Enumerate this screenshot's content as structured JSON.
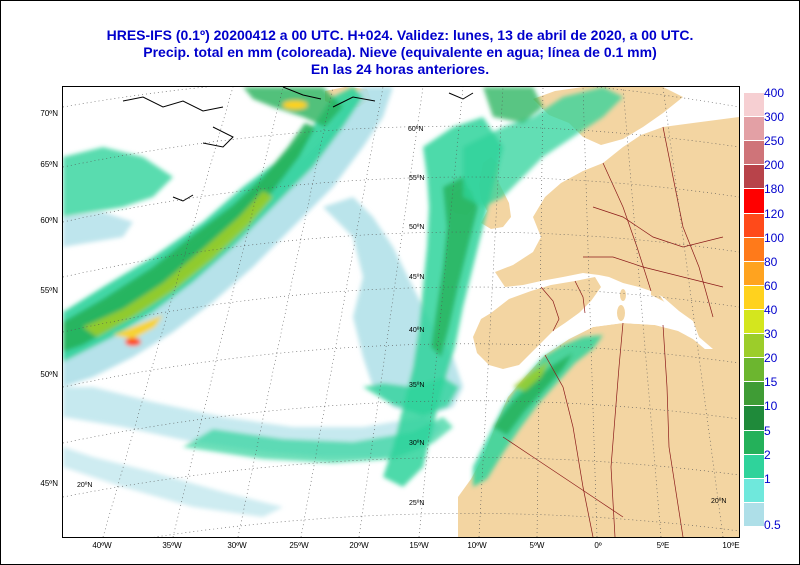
{
  "title": {
    "line1": "HRES-IFS (0.1º) 20200412 a 00 UTC.  H+024. Validez: lunes, 13 de abril de 2020,  a  00 UTC.",
    "line2": "Precip. total en mm (coloreada). Nieve (equivalente en agua; línea de 0.1 mm)",
    "line3": "En las 24 horas anteriores."
  },
  "axes": {
    "lat_left": [
      "70ºN",
      "65ºN",
      "60ºN",
      "55ºN",
      "50ºN",
      "45ºN"
    ],
    "lon_bottom": [
      "40ºW",
      "35ºW",
      "30ºW",
      "25ºW",
      "20ºW",
      "15ºW",
      "10ºW",
      "5ºW",
      "0º",
      "5ºE",
      "10ºE"
    ],
    "inner_lat": [
      "60ºN",
      "55ºN",
      "50ºN",
      "45ºN",
      "40ºN",
      "35ºN",
      "30ºN",
      "25ºN",
      "20ºN",
      "20ºN"
    ]
  },
  "legend": {
    "levels": [
      "400",
      "300",
      "250",
      "200",
      "180",
      "120",
      "100",
      "80",
      "60",
      "40",
      "30",
      "20",
      "15",
      "10",
      "5",
      "2",
      "1",
      "0.5"
    ],
    "colors": [
      "#f6cfd2",
      "#e3a0a5",
      "#cf7479",
      "#b8434a",
      "#ff0000",
      "#ff4a1a",
      "#ff7a1a",
      "#ffa31f",
      "#ffd21e",
      "#d4e61e",
      "#9ccd2a",
      "#6cb62f",
      "#3f9c35",
      "#1f8a3a",
      "#24b15a",
      "#2fd39b",
      "#6fe8dc",
      "#aedfe8"
    ]
  },
  "map": {
    "ocean_color": "#ffffff",
    "land_color": "#f3d5a2",
    "border_color": "#8b1a1a",
    "grid_color": "#555555"
  }
}
